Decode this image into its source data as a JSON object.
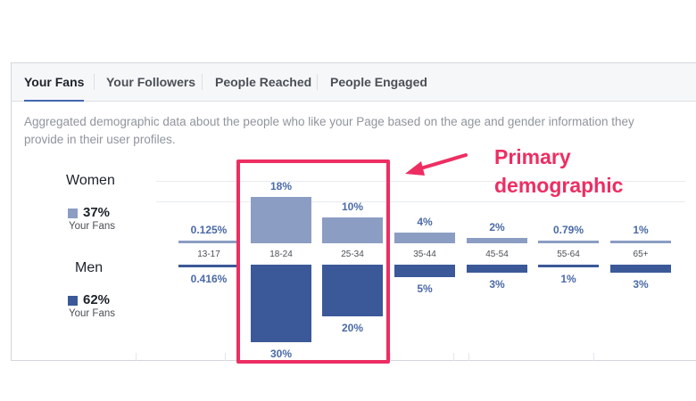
{
  "tabs": [
    {
      "label": "Your Fans",
      "active": true
    },
    {
      "label": "Your Followers",
      "active": false
    },
    {
      "label": "People Reached",
      "active": false
    },
    {
      "label": "People Engaged",
      "active": false
    }
  ],
  "description": "Aggregated demographic data about the people who like your Page based on the age and gender information they provide in their user profiles.",
  "legend": {
    "women": {
      "label": "Women",
      "pct": "37%",
      "sub": "Your Fans",
      "color": "#8b9dc3"
    },
    "men": {
      "label": "Men",
      "pct": "62%",
      "sub": "Your Fans",
      "color": "#3b5998"
    }
  },
  "annotation": {
    "line1": "Primary",
    "line2": "demographic",
    "color": "#ed2e62"
  },
  "chart_data": {
    "type": "bar",
    "categories": [
      "13-17",
      "18-24",
      "25-34",
      "35-44",
      "45-54",
      "55-64",
      "65+"
    ],
    "series": [
      {
        "name": "Women",
        "values": [
          0.125,
          18,
          10,
          4,
          2,
          0.79,
          1
        ],
        "labels": [
          "0.125%",
          "18%",
          "10%",
          "4%",
          "2%",
          "0.79%",
          "1%"
        ]
      },
      {
        "name": "Men",
        "values": [
          0.416,
          30,
          20,
          5,
          3,
          1,
          3
        ],
        "labels": [
          "0.416%",
          "30%",
          "20%",
          "5%",
          "3%",
          "1%",
          "3%"
        ]
      }
    ]
  }
}
